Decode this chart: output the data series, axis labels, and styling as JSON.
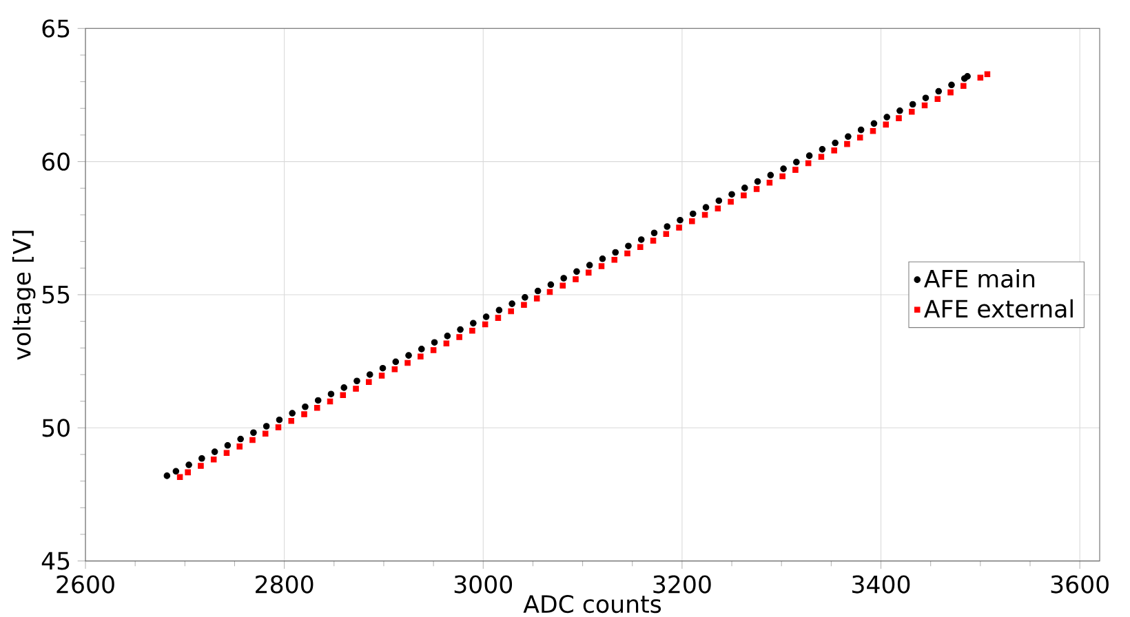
{
  "chart_data": {
    "type": "scatter",
    "xlabel": "ADC counts",
    "ylabel": "voltage [V]",
    "xlim": [
      2600,
      3620
    ],
    "ylim": [
      45,
      65
    ],
    "xticks": [
      2600,
      2800,
      3000,
      3200,
      3400,
      3600
    ],
    "yticks": [
      45,
      50,
      55,
      60,
      65
    ],
    "grid": true,
    "legend": "right",
    "series": [
      {
        "name": "AFE main",
        "color": "#000000",
        "marker": "circle",
        "x": [
          2682,
          2691,
          2704,
          2717,
          2730,
          2743,
          2756,
          2769,
          2782,
          2795,
          2808,
          2821,
          2834,
          2847,
          2860,
          2873,
          2886,
          2899,
          2912,
          2925,
          2938,
          2951,
          2964,
          2977,
          2990,
          3003,
          3016,
          3029,
          3042,
          3055,
          3068,
          3081,
          3094,
          3107,
          3120,
          3133,
          3146,
          3159,
          3172,
          3185,
          3198,
          3211,
          3224,
          3237,
          3250,
          3263,
          3276,
          3289,
          3302,
          3315,
          3328,
          3341,
          3354,
          3367,
          3380,
          3393,
          3406,
          3419,
          3432,
          3445,
          3458,
          3471,
          3484,
          3487
        ],
        "values": [
          48.2,
          48.37,
          48.61,
          48.85,
          49.1,
          49.34,
          49.58,
          49.82,
          50.06,
          50.3,
          50.55,
          50.79,
          51.03,
          51.27,
          51.51,
          51.76,
          52.0,
          52.24,
          52.48,
          52.72,
          52.96,
          53.21,
          53.45,
          53.69,
          53.93,
          54.17,
          54.42,
          54.66,
          54.9,
          55.14,
          55.38,
          55.62,
          55.87,
          56.11,
          56.35,
          56.59,
          56.83,
          57.07,
          57.32,
          57.56,
          57.8,
          58.04,
          58.28,
          58.53,
          58.77,
          59.01,
          59.25,
          59.49,
          59.73,
          59.98,
          60.22,
          60.46,
          60.7,
          60.94,
          61.19,
          61.43,
          61.67,
          61.91,
          62.15,
          62.39,
          62.64,
          62.88,
          63.12,
          63.2
        ]
      },
      {
        "name": "AFE external",
        "color": "#ff0000",
        "marker": "square",
        "x": [
          2695,
          2703,
          2716,
          2729,
          2742,
          2755,
          2768,
          2781,
          2794,
          2807,
          2820,
          2833,
          2846,
          2859,
          2872,
          2885,
          2898,
          2911,
          2924,
          2937,
          2950,
          2963,
          2976,
          2989,
          3002,
          3015,
          3028,
          3041,
          3054,
          3067,
          3080,
          3093,
          3106,
          3119,
          3132,
          3145,
          3158,
          3171,
          3184,
          3197,
          3210,
          3223,
          3236,
          3249,
          3262,
          3275,
          3288,
          3301,
          3314,
          3327,
          3340,
          3353,
          3366,
          3379,
          3392,
          3405,
          3418,
          3431,
          3444,
          3457,
          3470,
          3483,
          3500,
          3507
        ],
        "values": [
          48.15,
          48.33,
          48.57,
          48.81,
          49.06,
          49.3,
          49.54,
          49.78,
          50.02,
          50.26,
          50.51,
          50.75,
          50.99,
          51.23,
          51.47,
          51.72,
          51.96,
          52.2,
          52.44,
          52.68,
          52.92,
          53.17,
          53.41,
          53.65,
          53.89,
          54.13,
          54.38,
          54.62,
          54.86,
          55.1,
          55.34,
          55.58,
          55.83,
          56.07,
          56.31,
          56.55,
          56.79,
          57.03,
          57.28,
          57.52,
          57.76,
          58.0,
          58.24,
          58.49,
          58.73,
          58.97,
          59.21,
          59.45,
          59.69,
          59.94,
          60.18,
          60.42,
          60.66,
          60.9,
          61.15,
          61.39,
          61.63,
          61.87,
          62.11,
          62.35,
          62.6,
          62.84,
          63.15,
          63.28
        ]
      }
    ]
  }
}
